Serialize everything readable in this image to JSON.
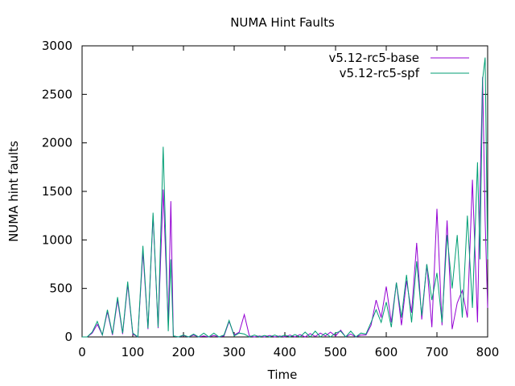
{
  "chart_data": {
    "type": "line",
    "title": "NUMA Hint Faults",
    "xlabel": "Time",
    "ylabel": "NUMA hint faults",
    "xlim": [
      0,
      800
    ],
    "ylim": [
      0,
      3000
    ],
    "x_ticks": [
      0,
      100,
      200,
      300,
      400,
      500,
      600,
      700,
      800
    ],
    "y_ticks": [
      0,
      500,
      1000,
      1500,
      2000,
      2500,
      3000
    ],
    "x_tick_labels": [
      "0",
      "100",
      "200",
      "300",
      "400",
      "500",
      "600",
      "700",
      "800"
    ],
    "y_tick_labels": [
      "0",
      "500",
      "1000",
      "1500",
      "2000",
      "2500",
      "3000"
    ],
    "legend_position": "top-right",
    "grid": false,
    "series": [
      {
        "name": "v5.12-rc5-base",
        "color": "#9400d3",
        "points": [
          [
            0,
            0
          ],
          [
            10,
            0
          ],
          [
            20,
            40
          ],
          [
            30,
            130
          ],
          [
            40,
            20
          ],
          [
            50,
            260
          ],
          [
            60,
            20
          ],
          [
            70,
            380
          ],
          [
            80,
            30
          ],
          [
            90,
            540
          ],
          [
            100,
            30
          ],
          [
            110,
            0
          ],
          [
            120,
            880
          ],
          [
            130,
            80
          ],
          [
            140,
            1250
          ],
          [
            150,
            90
          ],
          [
            160,
            1520
          ],
          [
            170,
            120
          ],
          [
            175,
            1400
          ],
          [
            180,
            10
          ],
          [
            190,
            0
          ],
          [
            200,
            15
          ],
          [
            210,
            0
          ],
          [
            220,
            20
          ],
          [
            230,
            0
          ],
          [
            240,
            10
          ],
          [
            250,
            0
          ],
          [
            260,
            15
          ],
          [
            270,
            0
          ],
          [
            280,
            10
          ],
          [
            290,
            160
          ],
          [
            300,
            20
          ],
          [
            310,
            50
          ],
          [
            320,
            230
          ],
          [
            330,
            10
          ],
          [
            340,
            0
          ],
          [
            350,
            10
          ],
          [
            360,
            0
          ],
          [
            370,
            15
          ],
          [
            380,
            0
          ],
          [
            390,
            10
          ],
          [
            400,
            0
          ],
          [
            410,
            20
          ],
          [
            420,
            0
          ],
          [
            430,
            25
          ],
          [
            440,
            0
          ],
          [
            450,
            35
          ],
          [
            460,
            5
          ],
          [
            470,
            40
          ],
          [
            480,
            10
          ],
          [
            490,
            50
          ],
          [
            500,
            10
          ],
          [
            510,
            70
          ],
          [
            520,
            0
          ],
          [
            530,
            30
          ],
          [
            540,
            0
          ],
          [
            550,
            20
          ],
          [
            560,
            20
          ],
          [
            570,
            120
          ],
          [
            580,
            380
          ],
          [
            590,
            200
          ],
          [
            600,
            520
          ],
          [
            610,
            150
          ],
          [
            620,
            560
          ],
          [
            630,
            120
          ],
          [
            640,
            580
          ],
          [
            650,
            250
          ],
          [
            660,
            970
          ],
          [
            670,
            180
          ],
          [
            680,
            750
          ],
          [
            690,
            100
          ],
          [
            700,
            1320
          ],
          [
            710,
            120
          ],
          [
            720,
            1200
          ],
          [
            730,
            80
          ],
          [
            740,
            350
          ],
          [
            750,
            480
          ],
          [
            760,
            200
          ],
          [
            770,
            1620
          ],
          [
            780,
            150
          ],
          [
            785,
            1500
          ],
          [
            790,
            2680
          ],
          [
            795,
            1200
          ],
          [
            800,
            300
          ]
        ]
      },
      {
        "name": "v5.12-rc5-spf",
        "color": "#009e73",
        "points": [
          [
            0,
            0
          ],
          [
            10,
            0
          ],
          [
            20,
            50
          ],
          [
            30,
            160
          ],
          [
            40,
            20
          ],
          [
            50,
            280
          ],
          [
            60,
            30
          ],
          [
            70,
            410
          ],
          [
            80,
            40
          ],
          [
            90,
            570
          ],
          [
            100,
            40
          ],
          [
            110,
            0
          ],
          [
            120,
            940
          ],
          [
            130,
            90
          ],
          [
            140,
            1280
          ],
          [
            150,
            100
          ],
          [
            160,
            1960
          ],
          [
            170,
            60
          ],
          [
            175,
            800
          ],
          [
            180,
            10
          ],
          [
            190,
            0
          ],
          [
            200,
            20
          ],
          [
            210,
            0
          ],
          [
            220,
            30
          ],
          [
            230,
            0
          ],
          [
            240,
            40
          ],
          [
            250,
            0
          ],
          [
            260,
            40
          ],
          [
            270,
            0
          ],
          [
            280,
            20
          ],
          [
            290,
            170
          ],
          [
            300,
            10
          ],
          [
            310,
            40
          ],
          [
            320,
            30
          ],
          [
            330,
            0
          ],
          [
            340,
            20
          ],
          [
            350,
            0
          ],
          [
            360,
            15
          ],
          [
            370,
            0
          ],
          [
            380,
            20
          ],
          [
            390,
            0
          ],
          [
            400,
            20
          ],
          [
            410,
            0
          ],
          [
            420,
            25
          ],
          [
            430,
            0
          ],
          [
            440,
            50
          ],
          [
            450,
            0
          ],
          [
            460,
            60
          ],
          [
            470,
            0
          ],
          [
            480,
            40
          ],
          [
            490,
            0
          ],
          [
            500,
            40
          ],
          [
            510,
            60
          ],
          [
            520,
            0
          ],
          [
            530,
            60
          ],
          [
            540,
            0
          ],
          [
            550,
            40
          ],
          [
            560,
            30
          ],
          [
            570,
            150
          ],
          [
            580,
            280
          ],
          [
            590,
            150
          ],
          [
            600,
            360
          ],
          [
            610,
            100
          ],
          [
            620,
            560
          ],
          [
            630,
            200
          ],
          [
            640,
            640
          ],
          [
            650,
            150
          ],
          [
            660,
            780
          ],
          [
            670,
            220
          ],
          [
            680,
            750
          ],
          [
            690,
            380
          ],
          [
            700,
            660
          ],
          [
            710,
            150
          ],
          [
            720,
            1050
          ],
          [
            730,
            500
          ],
          [
            740,
            1050
          ],
          [
            750,
            200
          ],
          [
            760,
            1250
          ],
          [
            770,
            300
          ],
          [
            780,
            1800
          ],
          [
            785,
            800
          ],
          [
            790,
            2650
          ],
          [
            795,
            2880
          ],
          [
            800,
            800
          ]
        ]
      }
    ]
  }
}
